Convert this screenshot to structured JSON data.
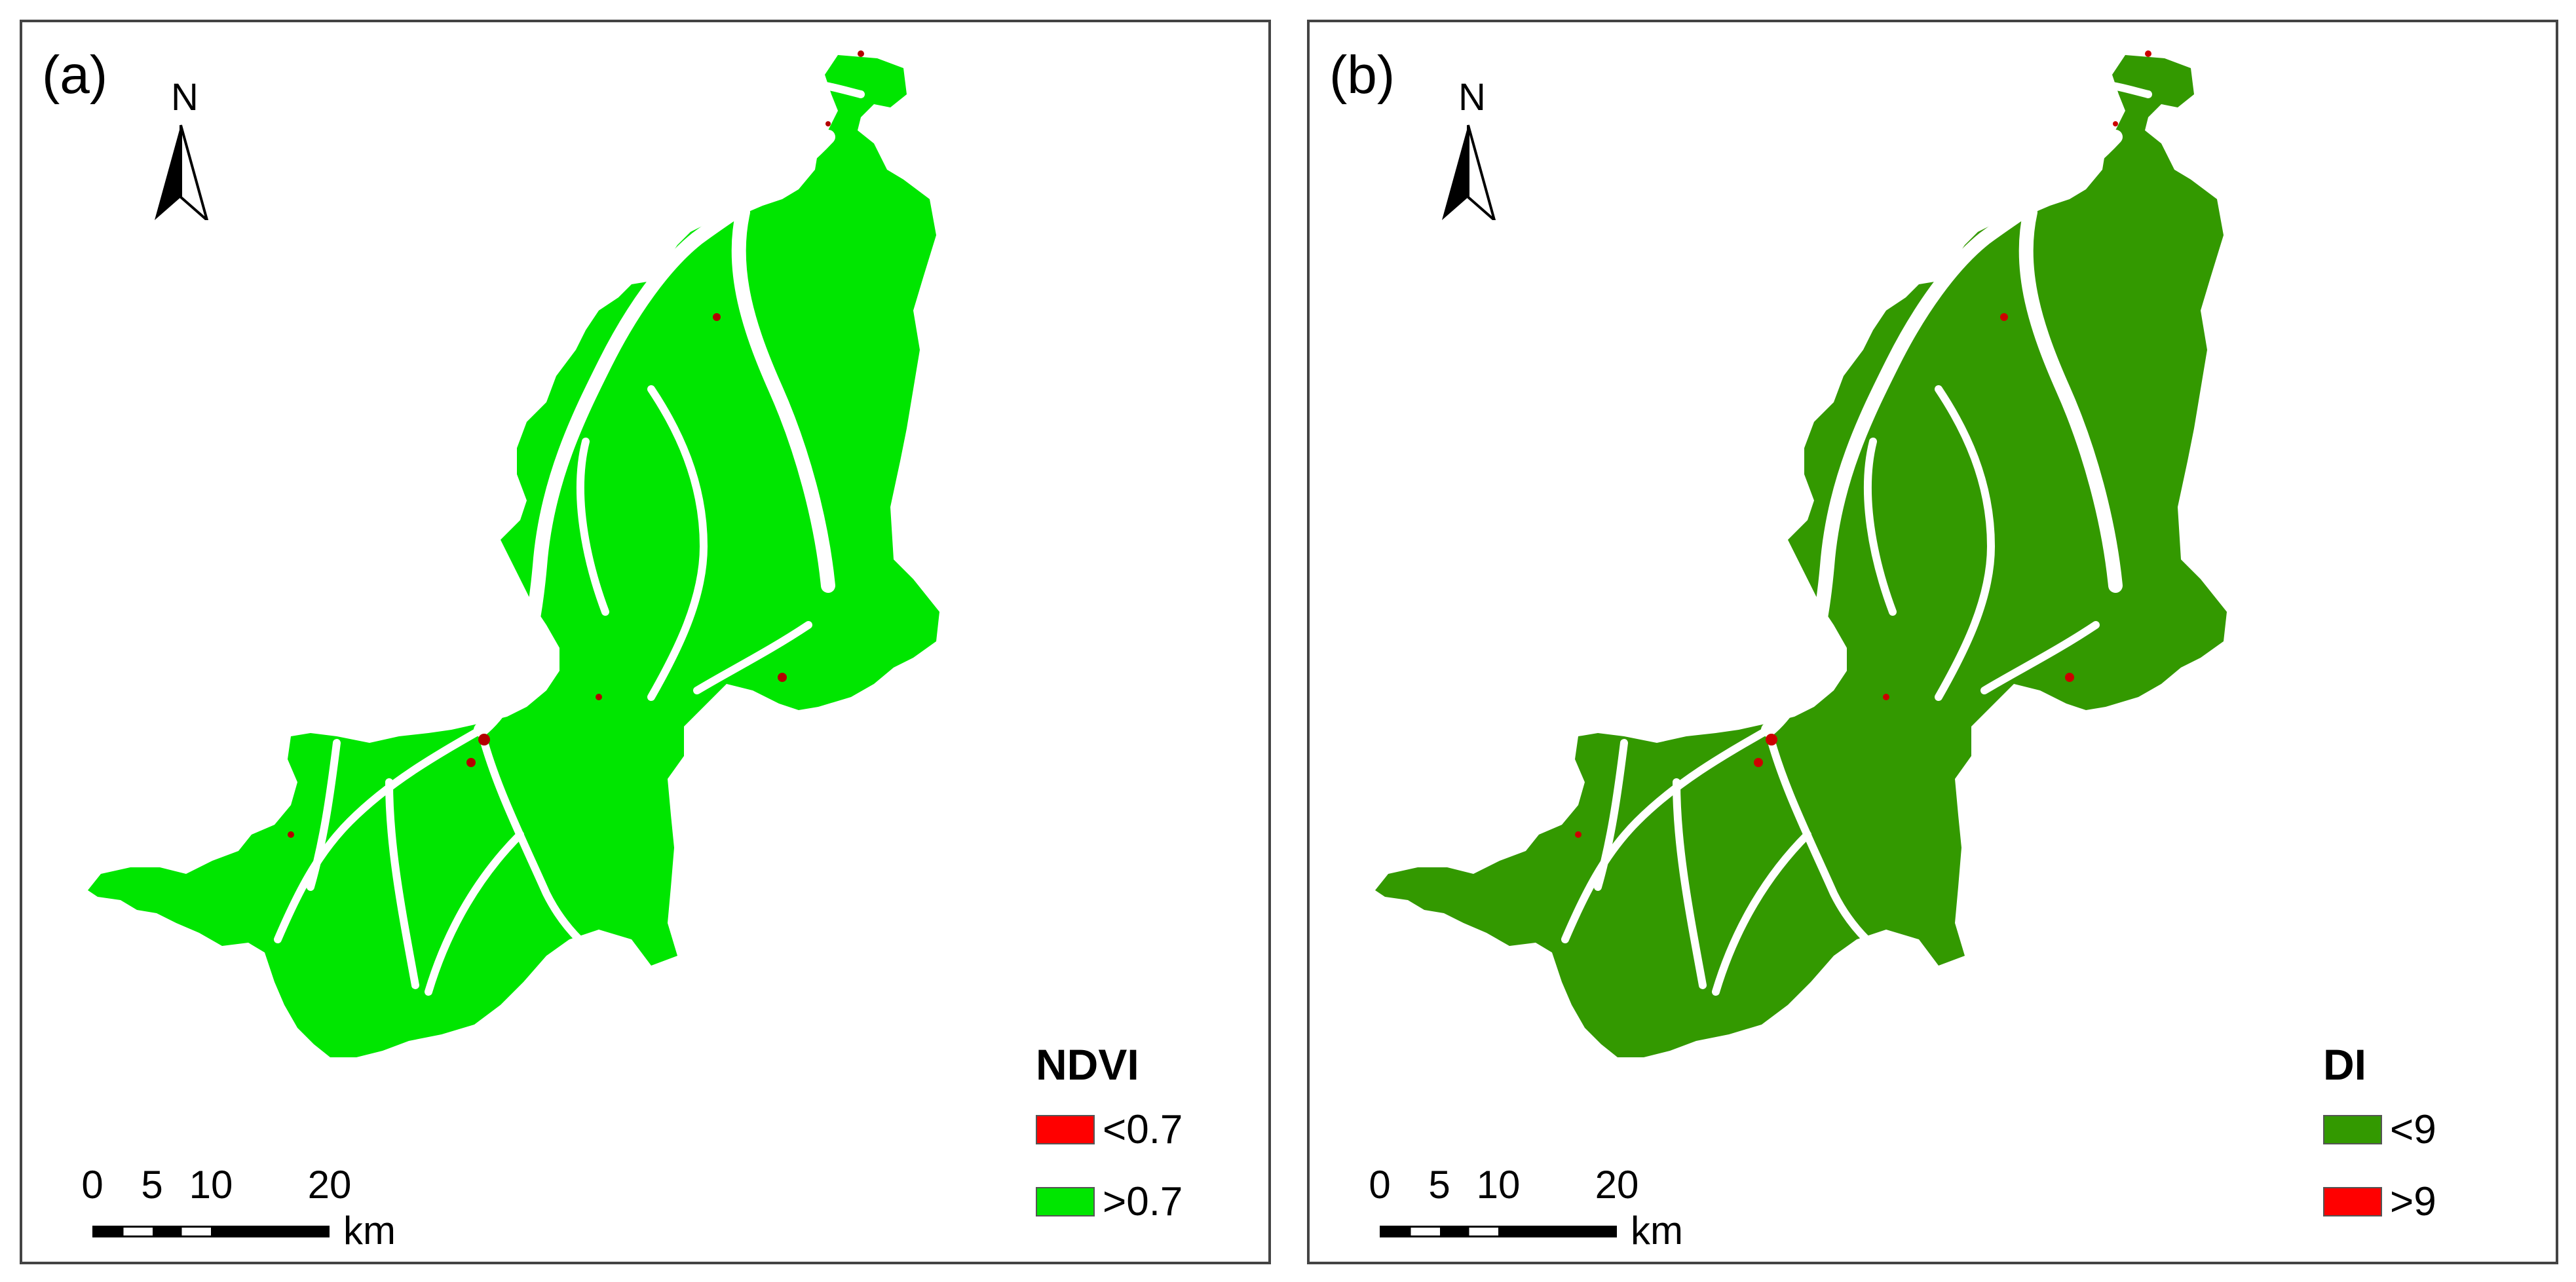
{
  "panels": [
    {
      "id": "a",
      "label": "(a)",
      "north_label": "N",
      "legend": {
        "title": "NDVI",
        "items": [
          {
            "label": "<0.7",
            "color": "#ff0000"
          },
          {
            "label": ">0.7",
            "color": "#00e600"
          }
        ]
      },
      "region_color": "#00e600",
      "hotspot_color": "#b30000"
    },
    {
      "id": "b",
      "label": "(b)",
      "north_label": "N",
      "legend": {
        "title": "DI",
        "items": [
          {
            "label": "<9",
            "color": "#339900"
          },
          {
            "label": ">9",
            "color": "#ff0000"
          }
        ]
      },
      "region_color": "#339900",
      "hotspot_color": "#cc0000"
    }
  ],
  "scale_bar": {
    "ticks": [
      "0",
      "5",
      "10",
      "20"
    ],
    "unit": "km"
  }
}
